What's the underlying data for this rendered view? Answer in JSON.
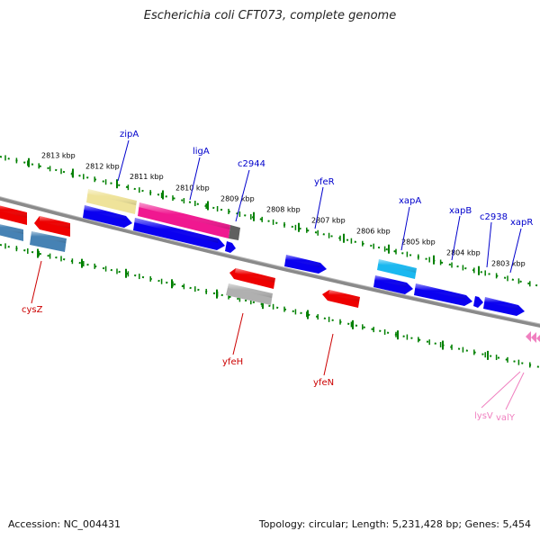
{
  "title": "Escherichia coli CFT073, complete genome",
  "footer": {
    "accession": "Accession: NC_004431",
    "summary": "Topology: circular; Length: 5,231,428 bp; Genes: 5,454"
  },
  "colors": {
    "blue": "#0a00f0",
    "red": "#ee0000",
    "steel": "#4682b4",
    "yellow": "#efe39a",
    "pink": "#f01890",
    "cyan": "#1ab8f0",
    "grey": "#b0b0b0",
    "trna_pink": "#f080c0",
    "axis_green": "#008000",
    "label_blue": "#0000cc",
    "label_red": "#cc0000",
    "label_pink": "#f080c0",
    "backbone": "#808080"
  },
  "ticks_top": [
    "2813 kbp",
    "2812 kbp",
    "2811 kbp",
    "2810 kbp",
    "2809 kbp",
    "2808 kbp",
    "2807 kbp",
    "2806 kbp",
    "2805 kbp",
    "2804 kbp",
    "2803 kbp"
  ],
  "genes_top": [
    "zipA",
    "ligA",
    "c2944",
    "yfeR",
    "xapA",
    "xapB",
    "c2938",
    "xapR"
  ],
  "genes_bottom": [
    "cysZ",
    "yfeH",
    "yfeN"
  ],
  "trna_labels": [
    "lysV",
    "valY"
  ]
}
